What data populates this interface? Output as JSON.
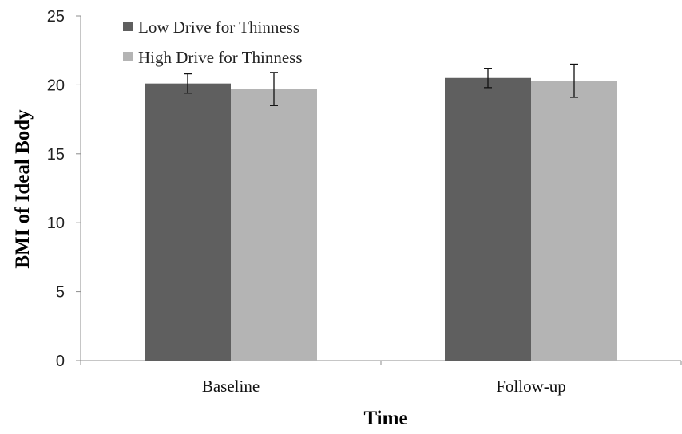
{
  "chart_data": {
    "type": "bar",
    "title": "",
    "xlabel": "Time",
    "ylabel": "BMI of Ideal Body",
    "categories": [
      "Baseline",
      "Follow-up"
    ],
    "ylim": [
      0,
      25
    ],
    "yticks": [
      0,
      5,
      10,
      15,
      20,
      25
    ],
    "grid": false,
    "legend_position": "top-left",
    "series": [
      {
        "name": "Low Drive for Thinness",
        "color": "#5f5f5f",
        "values": [
          20.1,
          20.5
        ],
        "error": [
          0.7,
          0.7
        ]
      },
      {
        "name": "High Drive for Thinness",
        "color": "#b4b4b4",
        "values": [
          19.7,
          20.3
        ],
        "error": [
          1.2,
          1.2
        ]
      }
    ]
  }
}
